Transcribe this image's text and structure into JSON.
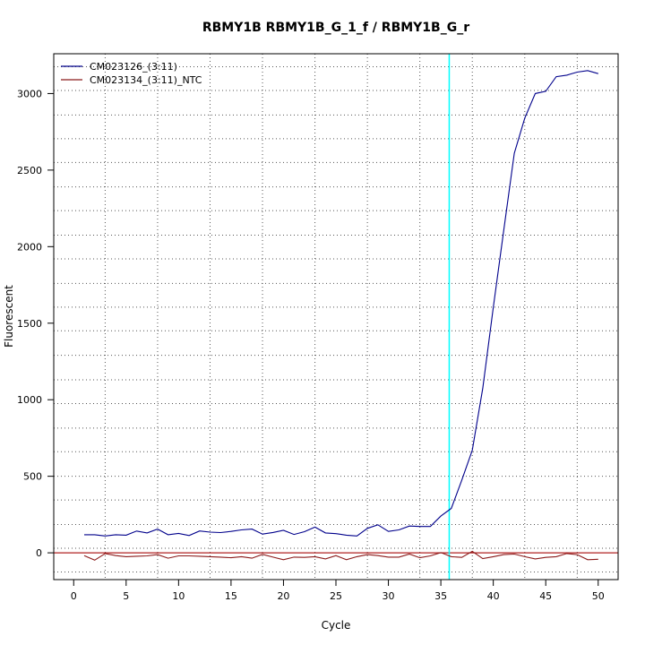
{
  "chart_data": {
    "type": "line",
    "title": "RBMY1B  RBMY1B_G_1_f / RBMY1B_G_r",
    "xlabel": "Cycle",
    "ylabel": "Fluorescent",
    "xlim": [
      -1.9,
      51.9
    ],
    "ylim": [
      -175,
      3260
    ],
    "x_ticks": [
      0,
      5,
      10,
      15,
      20,
      25,
      30,
      35,
      40,
      45,
      50
    ],
    "x_tick_labels": [
      "0",
      "5",
      "10",
      "15",
      "20",
      "25",
      "30",
      "35",
      "40",
      "45",
      "50"
    ],
    "y_ticks": [
      0,
      500,
      1000,
      1500,
      2000,
      2500,
      3000
    ],
    "y_tick_labels": [
      "0",
      "500",
      "1000",
      "1500",
      "2000",
      "2500",
      "3000"
    ],
    "grid": true,
    "grid_style": "dotted",
    "vertical_grid_x": [
      3,
      8,
      13,
      18,
      23,
      28,
      33,
      38,
      43,
      48
    ],
    "horizontal_grid_y": [
      -125,
      30,
      185,
      345,
      500,
      660,
      815,
      975,
      1130,
      1290,
      1450,
      1605,
      1760,
      1920,
      2075,
      2235,
      2390,
      2550,
      2705,
      2860,
      3020,
      3175
    ],
    "threshold": {
      "type": "vertical",
      "x": 35.8,
      "color": "#00ffff"
    },
    "baseline": {
      "type": "horizontal",
      "y": 0,
      "color": "#b22222"
    },
    "legend_position": "top-left",
    "series": [
      {
        "name": "CM023126_(3:11)",
        "color": "#00008b",
        "x": [
          1,
          2,
          3,
          4,
          5,
          6,
          7,
          8,
          9,
          10,
          11,
          12,
          13,
          14,
          15,
          16,
          17,
          18,
          19,
          20,
          21,
          22,
          23,
          24,
          25,
          26,
          27,
          28,
          29,
          30,
          31,
          32,
          33,
          34,
          35,
          36,
          37,
          38,
          39,
          40,
          41,
          42,
          43,
          44,
          45,
          46,
          47,
          48,
          49,
          50
        ],
        "y": [
          118,
          118,
          110,
          118,
          115,
          142,
          130,
          155,
          118,
          127,
          113,
          143,
          135,
          132,
          140,
          150,
          155,
          122,
          133,
          147,
          120,
          138,
          168,
          130,
          125,
          115,
          110,
          160,
          183,
          140,
          150,
          175,
          172,
          172,
          240,
          290,
          475,
          670,
          1075,
          1605,
          2110,
          2610,
          2840,
          3000,
          3015,
          3110,
          3120,
          3140,
          3150,
          3130
        ]
      },
      {
        "name": "CM023134_(3:11)_NTC",
        "color": "#8b1a1a",
        "x": [
          1,
          2,
          3,
          4,
          5,
          6,
          7,
          8,
          9,
          10,
          11,
          12,
          13,
          14,
          15,
          16,
          17,
          18,
          19,
          20,
          21,
          22,
          23,
          24,
          25,
          26,
          27,
          28,
          29,
          30,
          31,
          32,
          33,
          34,
          35,
          36,
          37,
          38,
          39,
          40,
          41,
          42,
          43,
          44,
          45,
          46,
          47,
          48,
          49,
          50
        ],
        "y": [
          -18,
          -48,
          -5,
          -18,
          -25,
          -22,
          -20,
          -12,
          -35,
          -20,
          -20,
          -22,
          -25,
          -28,
          -32,
          -25,
          -35,
          -10,
          -28,
          -45,
          -28,
          -30,
          -25,
          -40,
          -18,
          -45,
          -25,
          -12,
          -18,
          -28,
          -28,
          -8,
          -32,
          -20,
          2,
          -25,
          -30,
          10,
          -38,
          -25,
          -12,
          -8,
          -25,
          -40,
          -30,
          -25,
          -5,
          -12,
          -45,
          -42
        ]
      }
    ]
  }
}
